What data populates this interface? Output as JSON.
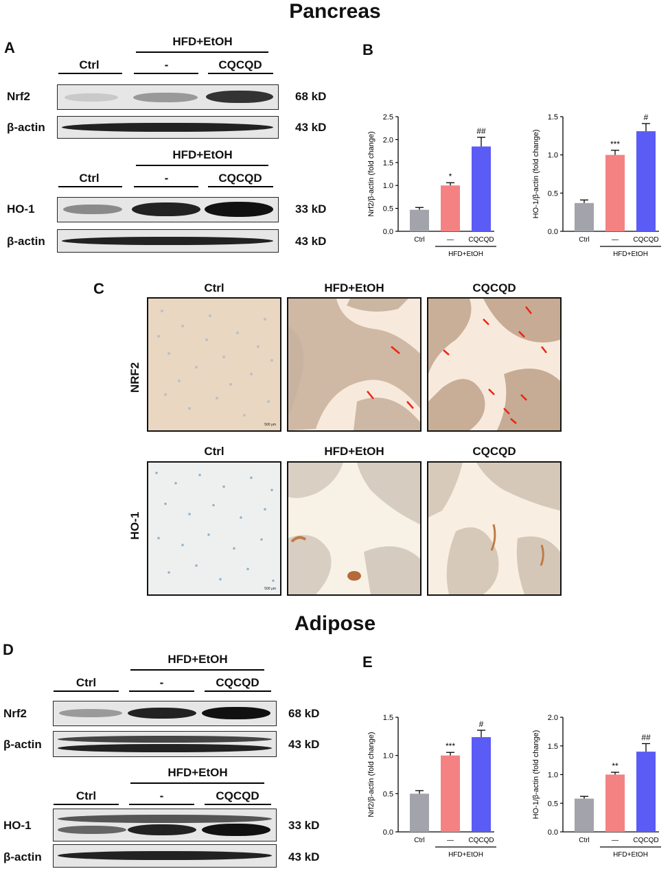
{
  "titles": {
    "pancreas": "Pancreas",
    "adipose": "Adipose"
  },
  "panels": {
    "a": "A",
    "b": "B",
    "c": "C",
    "d": "D",
    "e": "E"
  },
  "western": {
    "group_top": "HFD+EtOH",
    "ctrl": "Ctrl",
    "minus": "-",
    "cqcqd": "CQCQD",
    "nrf2": "Nrf2",
    "ho1": "HO-1",
    "actin": "β-actin",
    "kd_nrf2": "68 kD",
    "kd_ho1": "33 kD",
    "kd_actin": "43 kD"
  },
  "ihc": {
    "col_ctrl": "Ctrl",
    "col_hfd": "HFD+EtOH",
    "col_cqcqd": "CQCQD",
    "row_nrf2": "NRF2",
    "row_ho1": "HO-1",
    "scale": "500 μm"
  },
  "colors": {
    "ctrl": "#a3a3ab",
    "hfd": "#f48282",
    "cqcqd": "#5b5bf5"
  },
  "chart_data": [
    {
      "type": "bar",
      "panel": "B",
      "categories": [
        "Ctrl",
        "—",
        "CQCQD"
      ],
      "group_label": "HFD+EtOH",
      "values": [
        0.47,
        1.0,
        1.85
      ],
      "errors": [
        0.05,
        0.06,
        0.2
      ],
      "annotations": [
        "",
        "*",
        "##"
      ],
      "ylabel": "Nrf2/β-actin (fold change)",
      "ylim": [
        0,
        2.5
      ],
      "yticks": [
        "0.0",
        "0.5",
        "1.0",
        "1.5",
        "2.0",
        "2.5"
      ]
    },
    {
      "type": "bar",
      "panel": "B",
      "categories": [
        "Ctrl",
        "—",
        "CQCQD"
      ],
      "group_label": "HFD+EtOH",
      "values": [
        0.37,
        1.0,
        1.31
      ],
      "errors": [
        0.04,
        0.06,
        0.1
      ],
      "annotations": [
        "",
        "***",
        "#"
      ],
      "ylabel": "HO-1/β-actin (fold change)",
      "ylim": [
        0,
        1.5
      ],
      "yticks": [
        "0.0",
        "0.5",
        "1.0",
        "1.5"
      ]
    },
    {
      "type": "bar",
      "panel": "E",
      "categories": [
        "Ctrl",
        "—",
        "CQCQD"
      ],
      "group_label": "HFD+EtOH",
      "values": [
        0.5,
        1.0,
        1.24
      ],
      "errors": [
        0.04,
        0.04,
        0.09
      ],
      "annotations": [
        "",
        "***",
        "#"
      ],
      "ylabel": "Nrf2/β-actin (fold change)",
      "ylim": [
        0,
        1.5
      ],
      "yticks": [
        "0.0",
        "0.5",
        "1.0",
        "1.5"
      ]
    },
    {
      "type": "bar",
      "panel": "E",
      "categories": [
        "Ctrl",
        "—",
        "CQCQD"
      ],
      "group_label": "HFD+EtOH",
      "values": [
        0.58,
        1.0,
        1.4
      ],
      "errors": [
        0.04,
        0.04,
        0.14
      ],
      "annotations": [
        "",
        "**",
        "##"
      ],
      "ylabel": "HO-1/β-actin (fold change)",
      "ylim": [
        0,
        2.0
      ],
      "yticks": [
        "0.0",
        "0.5",
        "1.0",
        "1.5",
        "2.0"
      ]
    }
  ]
}
